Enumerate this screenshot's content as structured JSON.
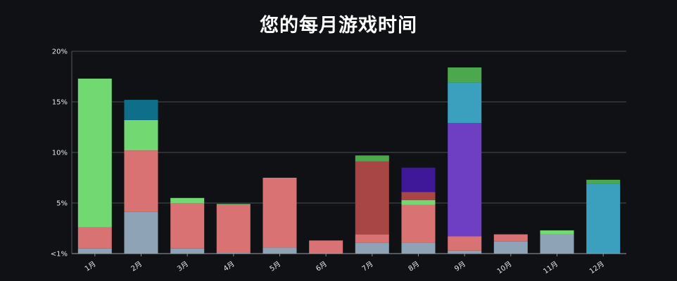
{
  "chart_data": {
    "type": "bar",
    "stacked": true,
    "title": "您的每月游戏时间",
    "xlabel": "",
    "ylabel": "",
    "categories": [
      "1月",
      "2月",
      "3月",
      "4月",
      "5月",
      "6月",
      "7月",
      "8月",
      "9月",
      "10月",
      "11月",
      "12月"
    ],
    "y_ticks": [
      {
        "value": 0,
        "label": "<1%"
      },
      {
        "value": 5,
        "label": "5%"
      },
      {
        "value": 10,
        "label": "10%"
      },
      {
        "value": 15,
        "label": "15%"
      },
      {
        "value": 20,
        "label": "20%"
      }
    ],
    "ylim": [
      0,
      20
    ],
    "grid": true,
    "legend": "none",
    "stacks": [
      [
        {
          "value": 0.5,
          "color": "#8ea3b5"
        },
        {
          "value": 2.1,
          "color": "#d97272"
        },
        {
          "value": 14.7,
          "color": "#72d972"
        }
      ],
      [
        {
          "value": 4.1,
          "color": "#8ea3b5"
        },
        {
          "value": 6.1,
          "color": "#d97272"
        },
        {
          "value": 3.0,
          "color": "#72d972"
        },
        {
          "value": 2.0,
          "color": "#0f6f8a"
        }
      ],
      [
        {
          "value": 0.5,
          "color": "#8ea3b5"
        },
        {
          "value": 4.5,
          "color": "#d97272"
        },
        {
          "value": 0.5,
          "color": "#72d972"
        }
      ],
      [
        {
          "value": 0.1,
          "color": "#8ea3b5"
        },
        {
          "value": 4.7,
          "color": "#d97272"
        },
        {
          "value": 0.1,
          "color": "#72d972"
        }
      ],
      [
        {
          "value": 0.6,
          "color": "#8ea3b5"
        },
        {
          "value": 6.9,
          "color": "#d97272"
        }
      ],
      [
        {
          "value": 1.3,
          "color": "#d97272"
        }
      ],
      [
        {
          "value": 1.1,
          "color": "#8ea3b5"
        },
        {
          "value": 0.8,
          "color": "#d97272"
        },
        {
          "value": 7.2,
          "color": "#a84545"
        },
        {
          "value": 0.6,
          "color": "#4ca84c"
        }
      ],
      [
        {
          "value": 1.1,
          "color": "#8ea3b5"
        },
        {
          "value": 3.7,
          "color": "#d97272"
        },
        {
          "value": 0.5,
          "color": "#72d972"
        },
        {
          "value": 0.8,
          "color": "#a84545"
        },
        {
          "value": 2.4,
          "color": "#3f1899"
        }
      ],
      [
        {
          "value": 0.3,
          "color": "#8ea3b5"
        },
        {
          "value": 1.4,
          "color": "#d97272"
        },
        {
          "value": 11.2,
          "color": "#6e3fc2"
        },
        {
          "value": 4.0,
          "color": "#3aa0be"
        },
        {
          "value": 1.5,
          "color": "#4ca84c"
        }
      ],
      [
        {
          "value": 1.2,
          "color": "#8ea3b5"
        },
        {
          "value": 0.7,
          "color": "#d97272"
        }
      ],
      [
        {
          "value": 1.9,
          "color": "#8ea3b5"
        },
        {
          "value": 0.4,
          "color": "#72d972"
        }
      ],
      [
        {
          "value": 6.9,
          "color": "#3aa0be"
        },
        {
          "value": 0.4,
          "color": "#4ca84c"
        }
      ]
    ]
  }
}
